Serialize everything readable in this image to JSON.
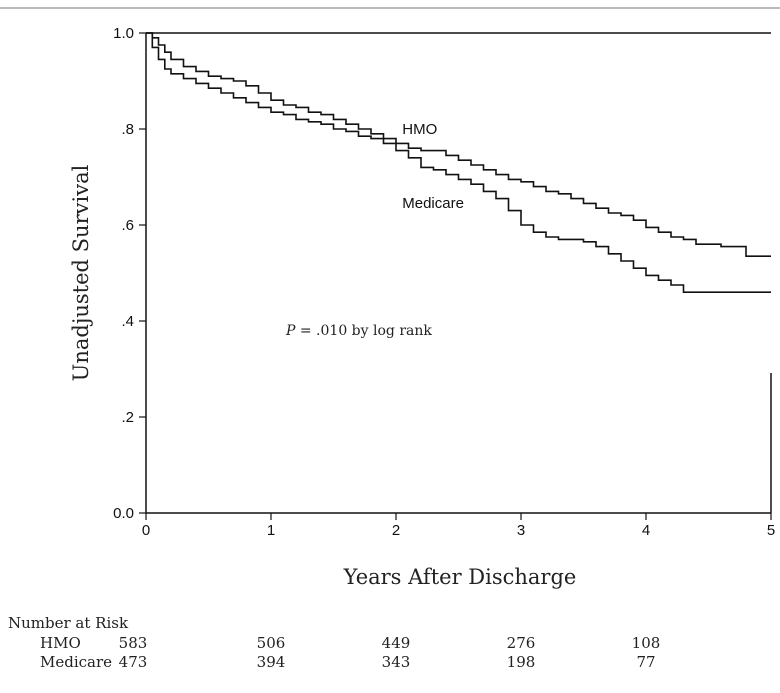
{
  "chart_data": {
    "type": "line",
    "title": "",
    "xlabel": "Years After Discharge",
    "ylabel": "Unadjusted Survival",
    "xlim": [
      0,
      5
    ],
    "ylim": [
      0,
      1
    ],
    "x_ticks": [
      "0",
      "1",
      "2",
      "3",
      "4",
      "5"
    ],
    "y_ticks": [
      "0.0",
      ".2",
      ".4",
      ".6",
      ".8",
      "1.0"
    ],
    "grid": false,
    "annotation": {
      "italic": "P",
      "text": " = .010 by log rank"
    },
    "series": [
      {
        "name": "HMO",
        "color": "#111111",
        "step": true,
        "x": [
          0,
          0.05,
          0.1,
          0.15,
          0.2,
          0.3,
          0.4,
          0.5,
          0.6,
          0.7,
          0.8,
          0.9,
          1.0,
          1.1,
          1.2,
          1.3,
          1.4,
          1.5,
          1.6,
          1.7,
          1.8,
          1.9,
          2.0,
          2.1,
          2.2,
          2.3,
          2.4,
          2.5,
          2.6,
          2.7,
          2.8,
          2.9,
          3.0,
          3.1,
          3.2,
          3.3,
          3.4,
          3.5,
          3.6,
          3.7,
          3.8,
          3.9,
          4.0,
          4.1,
          4.2,
          4.3,
          4.4,
          4.5,
          4.6,
          4.8,
          5.0
        ],
        "y": [
          1.0,
          0.99,
          0.975,
          0.96,
          0.945,
          0.93,
          0.92,
          0.91,
          0.905,
          0.9,
          0.89,
          0.875,
          0.86,
          0.85,
          0.845,
          0.835,
          0.83,
          0.82,
          0.81,
          0.8,
          0.79,
          0.78,
          0.77,
          0.76,
          0.755,
          0.755,
          0.745,
          0.735,
          0.725,
          0.715,
          0.705,
          0.695,
          0.69,
          0.68,
          0.67,
          0.665,
          0.655,
          0.645,
          0.635,
          0.625,
          0.62,
          0.61,
          0.595,
          0.585,
          0.575,
          0.57,
          0.56,
          0.56,
          0.555,
          0.535,
          0.535
        ]
      },
      {
        "name": "Medicare",
        "color": "#111111",
        "step": true,
        "x": [
          0,
          0.05,
          0.1,
          0.15,
          0.2,
          0.3,
          0.4,
          0.5,
          0.6,
          0.7,
          0.8,
          0.9,
          1.0,
          1.1,
          1.2,
          1.3,
          1.4,
          1.5,
          1.6,
          1.7,
          1.8,
          1.9,
          2.0,
          2.1,
          2.2,
          2.3,
          2.4,
          2.5,
          2.6,
          2.7,
          2.8,
          2.9,
          3.0,
          3.1,
          3.2,
          3.3,
          3.4,
          3.5,
          3.6,
          3.7,
          3.8,
          3.9,
          4.0,
          4.1,
          4.2,
          4.3,
          4.5,
          4.8,
          5.0
        ],
        "y": [
          1.0,
          0.97,
          0.945,
          0.925,
          0.915,
          0.905,
          0.895,
          0.885,
          0.875,
          0.865,
          0.855,
          0.845,
          0.835,
          0.83,
          0.82,
          0.815,
          0.81,
          0.8,
          0.795,
          0.785,
          0.78,
          0.77,
          0.755,
          0.74,
          0.72,
          0.715,
          0.705,
          0.695,
          0.685,
          0.67,
          0.655,
          0.63,
          0.6,
          0.585,
          0.575,
          0.57,
          0.57,
          0.565,
          0.555,
          0.54,
          0.525,
          0.51,
          0.495,
          0.485,
          0.475,
          0.46,
          0.46,
          0.46,
          0.46
        ]
      }
    ],
    "series_labels": [
      {
        "text": "HMO",
        "x": 2.05,
        "y": 0.79
      },
      {
        "text": "Medicare",
        "x": 2.05,
        "y": 0.635
      }
    ],
    "number_at_risk": {
      "title": "Number at Risk",
      "x": [
        0,
        1,
        2,
        3,
        4
      ],
      "rows": [
        {
          "label": "HMO",
          "values": [
            "583",
            "506",
            "449",
            "276",
            "108"
          ]
        },
        {
          "label": "Medicare",
          "values": [
            "473",
            "394",
            "343",
            "198",
            "77"
          ]
        }
      ]
    }
  }
}
